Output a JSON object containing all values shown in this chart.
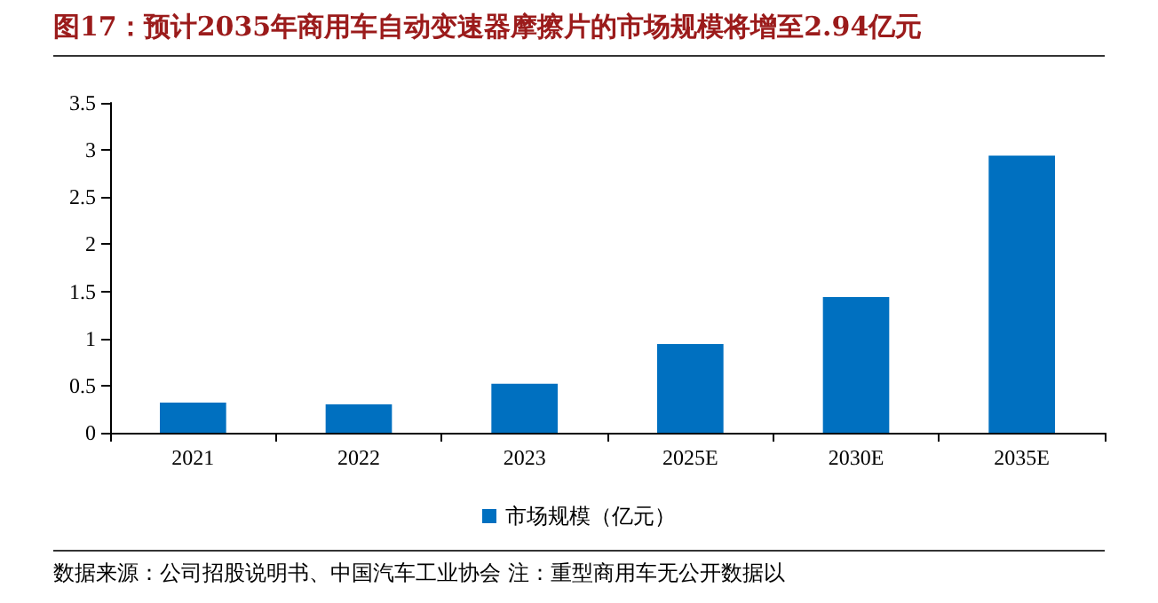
{
  "chart_data": {
    "type": "bar",
    "title": "图17：预计2035年商用车自动变速器摩擦片的市场规模将增至2.94亿元",
    "categories": [
      "2021",
      "2022",
      "2023",
      "2025E",
      "2030E",
      "2035E"
    ],
    "series": [
      {
        "name": "市场规模（亿元）",
        "color": "#0070c0",
        "values": [
          0.32,
          0.3,
          0.52,
          0.94,
          1.44,
          2.94
        ]
      }
    ],
    "ylim": [
      0,
      3.5
    ],
    "yticks": [
      0,
      0.5,
      1,
      1.5,
      2,
      2.5,
      3,
      3.5
    ],
    "grid": false,
    "legend": "bottom",
    "annotations": [
      "数据来源：公司招股说明书、中国汽车工业协会 注：重型商用车无公开数据以"
    ]
  }
}
